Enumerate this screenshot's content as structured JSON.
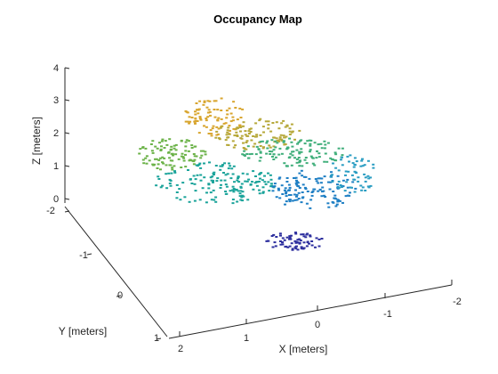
{
  "chart_data": {
    "type": "scatter",
    "title": "Occupancy Map",
    "xlabel": "X [meters]",
    "ylabel": "Y [meters]",
    "zlabel": "Z [meters]",
    "xlim": [
      -2,
      2
    ],
    "ylim": [
      -2,
      1
    ],
    "zlim": [
      0,
      4
    ],
    "x_ticks": [
      "2",
      "1",
      "0",
      "-1",
      "-2"
    ],
    "y_ticks": [
      "-2",
      "-1",
      "0",
      "1"
    ],
    "z_ticks": [
      "0",
      "1",
      "2",
      "3",
      "4"
    ],
    "grid": false,
    "colormap": "parula (colored by height)",
    "colors": {
      "low": "#2d2f9e",
      "mid_low": "#1f7fc4",
      "mid": "#1aa39a",
      "mid_high": "#6bb248",
      "high": "#d8a52e"
    },
    "series": [
      {
        "values": [
          {
            "x": 0.0,
            "y": -0.6,
            "z": 1.2
          },
          {
            "x": 0.6,
            "y": -0.4,
            "z": 1.0
          },
          {
            "x": -0.8,
            "y": -0.8,
            "z": 0.8
          },
          {
            "x": -1.2,
            "y": -0.2,
            "z": 0.5
          },
          {
            "x": 0.2,
            "y": -1.2,
            "z": 1.8
          },
          {
            "x": 0.9,
            "y": -1.6,
            "z": 3.0
          },
          {
            "x": 1.4,
            "y": -1.0,
            "z": 2.0
          },
          {
            "x": -0.2,
            "y": 0.0,
            "z": 0.3
          }
        ]
      }
    ]
  }
}
